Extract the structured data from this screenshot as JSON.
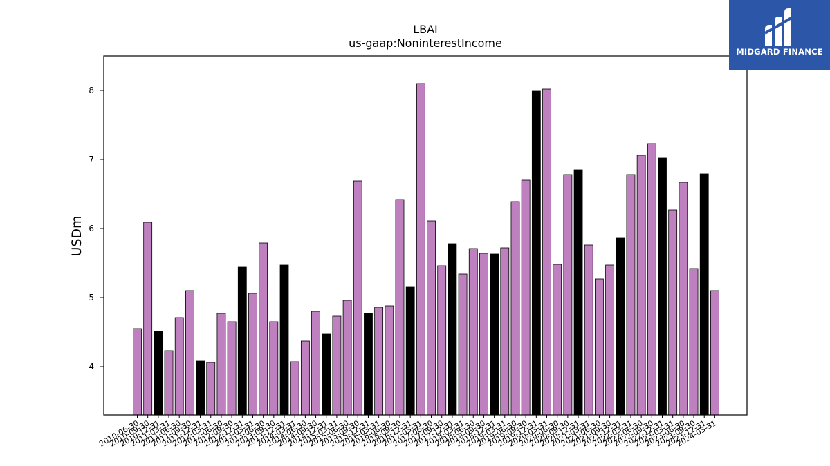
{
  "chart_data": {
    "type": "bar",
    "title": "LBAI",
    "subtitle": "us-gaap:NoninterestIncome",
    "xlabel": "",
    "ylabel": "USDm",
    "ylim": [
      3.3,
      8.5
    ],
    "yticks": [
      4,
      5,
      6,
      7,
      8
    ],
    "grid": false,
    "categories": [
      "2010-06-30",
      "2010-09-30",
      "2010-12-31",
      "2011-03-31",
      "2011-06-30",
      "2011-09-30",
      "2011-12-31",
      "2012-03-31",
      "2012-06-30",
      "2012-09-30",
      "2012-12-31",
      "2013-03-31",
      "2013-06-30",
      "2013-09-30",
      "2013-12-31",
      "2014-03-31",
      "2014-06-30",
      "2014-09-30",
      "2014-12-31",
      "2015-03-31",
      "2015-06-30",
      "2015-09-30",
      "2015-12-31",
      "2016-03-31",
      "2016-06-30",
      "2016-09-30",
      "2016-12-31",
      "2017-03-31",
      "2017-06-30",
      "2017-09-30",
      "2017-12-31",
      "2018-03-31",
      "2018-06-30",
      "2018-09-30",
      "2018-12-31",
      "2019-03-31",
      "2019-06-30",
      "2019-09-30",
      "2019-12-31",
      "2020-03-31",
      "2020-06-30",
      "2020-09-30",
      "2020-12-31",
      "2021-03-31",
      "2021-06-30",
      "2021-09-30",
      "2021-12-31",
      "2022-03-31",
      "2022-06-30",
      "2022-09-30",
      "2022-12-31",
      "2023-03-31",
      "2023-06-30",
      "2023-09-30",
      "2023-12-31",
      "2024-03-31"
    ],
    "values": [
      4.55,
      6.09,
      4.51,
      4.23,
      4.71,
      5.1,
      4.08,
      4.06,
      4.77,
      4.65,
      5.44,
      5.06,
      5.79,
      4.65,
      5.47,
      4.07,
      4.37,
      4.8,
      4.47,
      4.73,
      4.96,
      6.69,
      4.77,
      4.86,
      4.88,
      6.42,
      5.16,
      8.1,
      6.11,
      5.46,
      5.78,
      5.34,
      5.71,
      5.64,
      5.63,
      5.72,
      6.39,
      6.7,
      7.99,
      8.02,
      5.48,
      6.78,
      6.85,
      5.76,
      5.27,
      5.47,
      5.86,
      6.78,
      7.06,
      7.23,
      7.02,
      6.27,
      6.67,
      5.42,
      6.79,
      5.1
    ],
    "highlight": [
      false,
      false,
      true,
      false,
      false,
      false,
      true,
      false,
      false,
      false,
      true,
      false,
      false,
      false,
      true,
      false,
      false,
      false,
      true,
      false,
      false,
      false,
      true,
      false,
      false,
      false,
      true,
      false,
      false,
      false,
      true,
      false,
      false,
      false,
      true,
      false,
      false,
      false,
      true,
      false,
      false,
      false,
      true,
      false,
      false,
      false,
      true,
      false,
      false,
      false,
      true,
      false,
      false,
      false,
      true,
      false
    ],
    "colors": {
      "bar": "#bf80bf",
      "highlight": "#000000",
      "edge": "#000000"
    }
  },
  "logo": {
    "text": "MIDGARD FINANCE",
    "background": "#2c57a8"
  }
}
